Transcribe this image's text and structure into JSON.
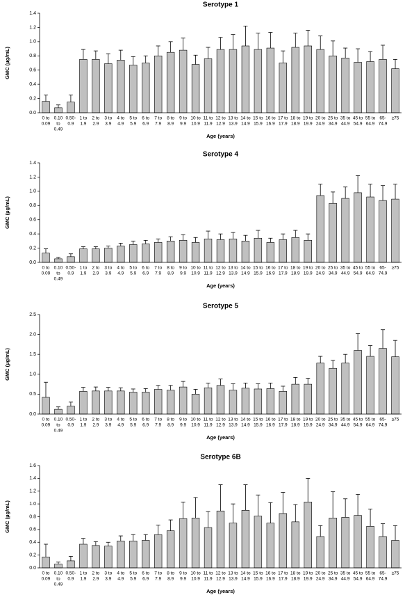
{
  "chart_data": [
    {
      "type": "bar",
      "title": "Serotype 1",
      "x_label": "Age (years)",
      "y_label": "GMC (µg/mL)",
      "color": "#c0c0c0",
      "categories": [
        [
          "0 to",
          "0.09"
        ],
        [
          "0.10",
          "to",
          "0.49"
        ],
        [
          "0.50-",
          "0.9"
        ],
        [
          "1 to",
          "1.9"
        ],
        [
          "2 to",
          "2.9"
        ],
        [
          "3 to",
          "3.9"
        ],
        [
          "4 to",
          "4.9"
        ],
        [
          "5 to",
          "5.9"
        ],
        [
          "6 to",
          "6.9"
        ],
        [
          "7 to",
          "7.9"
        ],
        [
          "8 to",
          "8.9"
        ],
        [
          "9 to",
          "9.9"
        ],
        [
          "10 to",
          "10.9"
        ],
        [
          "11 to",
          "11.9"
        ],
        [
          "12 to",
          "12.9"
        ],
        [
          "13 to",
          "13.9"
        ],
        [
          "14 to",
          "14.9"
        ],
        [
          "15 to",
          "15.9"
        ],
        [
          "16 to",
          "16.9"
        ],
        [
          "17 to",
          "17.9"
        ],
        [
          "18 to",
          "18.9"
        ],
        [
          "19 to",
          "19.9"
        ],
        [
          "20 to",
          "24.9"
        ],
        [
          "25 to",
          "34.9"
        ],
        [
          "35 to",
          "44.9"
        ],
        [
          "45 to",
          "54.9"
        ],
        [
          "55 to",
          "64.9"
        ],
        [
          "65-",
          "74.9"
        ],
        [
          "≥75"
        ]
      ],
      "values": [
        0.16,
        0.07,
        0.15,
        0.75,
        0.75,
        0.69,
        0.74,
        0.67,
        0.7,
        0.8,
        0.85,
        0.88,
        0.68,
        0.76,
        0.89,
        0.89,
        0.94,
        0.89,
        0.91,
        0.7,
        0.92,
        0.94,
        0.89,
        0.8,
        0.77,
        0.71,
        0.72,
        0.75,
        0.62
      ],
      "errors": [
        0.09,
        0.04,
        0.1,
        0.14,
        0.12,
        0.14,
        0.14,
        0.12,
        0.1,
        0.14,
        0.15,
        0.17,
        0.13,
        0.16,
        0.17,
        0.21,
        0.28,
        0.23,
        0.22,
        0.17,
        0.2,
        0.22,
        0.19,
        0.21,
        0.14,
        0.19,
        0.14,
        0.2,
        0.13
      ],
      "ylim": [
        0,
        1.4
      ],
      "yticks": [
        {
          "value": 0,
          "label": "0.0"
        },
        0.2,
        0.4,
        0.6,
        0.8,
        {
          "value": 1,
          "label": "1.0"
        },
        1.2,
        1.4
      ]
    },
    {
      "type": "bar",
      "title": "Serotype 4",
      "x_label": "Age (years)",
      "y_label": "GMC (µg/mL)",
      "color": "#c0c0c0",
      "categories": [
        [
          "0 to",
          "0.09"
        ],
        [
          "0.10",
          "to",
          "0.49"
        ],
        [
          "0.50-",
          "0.9"
        ],
        [
          "1 to",
          "1.9"
        ],
        [
          "2 to",
          "2.9"
        ],
        [
          "3 to",
          "3.9"
        ],
        [
          "4 to",
          "4.9"
        ],
        [
          "5 to",
          "5.9"
        ],
        [
          "6 to",
          "6.9"
        ],
        [
          "7 to",
          "7.9"
        ],
        [
          "8 to",
          "8.9"
        ],
        [
          "9 to",
          "9.9"
        ],
        [
          "10 to",
          "10.9"
        ],
        [
          "11 to",
          "11.9"
        ],
        [
          "12 to",
          "12.9"
        ],
        [
          "13 to",
          "13.9"
        ],
        [
          "14 to",
          "14.9"
        ],
        [
          "15 to",
          "15.9"
        ],
        [
          "16 to",
          "16.9"
        ],
        [
          "17 to",
          "17.9"
        ],
        [
          "18 to",
          "18.9"
        ],
        [
          "19 to",
          "19.9"
        ],
        [
          "20 to",
          "24.9"
        ],
        [
          "25 to",
          "34.9"
        ],
        [
          "35 to",
          "44.9"
        ],
        [
          "45 to",
          "54.9"
        ],
        [
          "55 to",
          "64.9"
        ],
        [
          "65-",
          "74.9"
        ],
        [
          "≥75"
        ]
      ],
      "values": [
        0.13,
        0.05,
        0.08,
        0.19,
        0.19,
        0.2,
        0.23,
        0.25,
        0.26,
        0.28,
        0.3,
        0.31,
        0.28,
        0.33,
        0.32,
        0.33,
        0.3,
        0.34,
        0.28,
        0.32,
        0.35,
        0.31,
        0.94,
        0.83,
        0.9,
        0.98,
        0.92,
        0.87,
        0.89
      ],
      "errors": [
        0.06,
        0.02,
        0.04,
        0.03,
        0.03,
        0.03,
        0.04,
        0.05,
        0.05,
        0.05,
        0.06,
        0.08,
        0.07,
        0.11,
        0.08,
        0.09,
        0.08,
        0.11,
        0.06,
        0.08,
        0.1,
        0.09,
        0.16,
        0.16,
        0.16,
        0.24,
        0.18,
        0.21,
        0.21
      ],
      "ylim": [
        0,
        1.4
      ],
      "yticks": [
        {
          "value": 0,
          "label": "0.0"
        },
        0.2,
        0.4,
        0.6,
        0.8,
        {
          "value": 1,
          "label": "1.0"
        },
        1.2,
        1.4
      ]
    },
    {
      "type": "bar",
      "title": "Serotype 5",
      "x_label": "Age (years)",
      "y_label": "GMC (µg/mL)",
      "color": "#c0c0c0",
      "categories": [
        [
          "0 to",
          "0.09"
        ],
        [
          "0.10",
          "to",
          "0.49"
        ],
        [
          "0.50-",
          "0.9"
        ],
        [
          "1 to",
          "1.9"
        ],
        [
          "2 to",
          "2.9"
        ],
        [
          "3 to",
          "3.9"
        ],
        [
          "4 to",
          "4.9"
        ],
        [
          "5 to",
          "5.9"
        ],
        [
          "6 to",
          "6.9"
        ],
        [
          "7 to",
          "7.9"
        ],
        [
          "8 to",
          "8.9"
        ],
        [
          "9 to",
          "9.9"
        ],
        [
          "10 to",
          "10.9"
        ],
        [
          "11 to",
          "11.9"
        ],
        [
          "12 to",
          "12.9"
        ],
        [
          "13 to",
          "13.9"
        ],
        [
          "14 to",
          "14.9"
        ],
        [
          "15 to",
          "15.9"
        ],
        [
          "16 to",
          "16.9"
        ],
        [
          "17 to",
          "17.9"
        ],
        [
          "18 to",
          "18.9"
        ],
        [
          "19 to",
          "19.9"
        ],
        [
          "20 to",
          "24.9"
        ],
        [
          "25 to",
          "34.9"
        ],
        [
          "35 to",
          "44.9"
        ],
        [
          "45 to",
          "54.9"
        ],
        [
          "55 to",
          "64.9"
        ],
        [
          "65-",
          "74.9"
        ],
        [
          "≥75"
        ]
      ],
      "values": [
        0.42,
        0.12,
        0.2,
        0.57,
        0.58,
        0.58,
        0.58,
        0.55,
        0.55,
        0.62,
        0.6,
        0.68,
        0.5,
        0.66,
        0.72,
        0.6,
        0.65,
        0.63,
        0.64,
        0.57,
        0.75,
        0.75,
        1.28,
        1.15,
        1.28,
        1.6,
        1.45,
        1.65,
        1.44
      ],
      "errors": [
        0.38,
        0.06,
        0.1,
        0.1,
        0.1,
        0.09,
        0.08,
        0.08,
        0.09,
        0.1,
        0.12,
        0.14,
        0.12,
        0.12,
        0.16,
        0.16,
        0.13,
        0.13,
        0.14,
        0.13,
        0.17,
        0.15,
        0.17,
        0.2,
        0.22,
        0.42,
        0.27,
        0.47,
        0.41
      ],
      "ylim": [
        0,
        2.5
      ],
      "yticks": [
        {
          "value": 0,
          "label": "0.0"
        },
        0.5,
        {
          "value": 1,
          "label": "1.0"
        },
        1.5,
        {
          "value": 2,
          "label": "2.0"
        },
        2.5
      ]
    },
    {
      "type": "bar",
      "title": "Serotype 6B",
      "x_label": "Age (years)",
      "y_label": "GMC (µg/mL)",
      "color": "#c0c0c0",
      "categories": [
        [
          "0 to",
          "0.09"
        ],
        [
          "0.10",
          "to",
          "0.49"
        ],
        [
          "0.50-",
          "0.9"
        ],
        [
          "1 to",
          "1.9"
        ],
        [
          "2 to",
          "2.9"
        ],
        [
          "3 to",
          "3.9"
        ],
        [
          "4 to",
          "4.9"
        ],
        [
          "5 to",
          "5.9"
        ],
        [
          "6 to",
          "6.9"
        ],
        [
          "7 to",
          "7.9"
        ],
        [
          "8 to",
          "8.9"
        ],
        [
          "9 to",
          "9.9"
        ],
        [
          "10 to",
          "10.9"
        ],
        [
          "11 to",
          "11.9"
        ],
        [
          "12 to",
          "12.9"
        ],
        [
          "13 to",
          "13.9"
        ],
        [
          "14 to",
          "14.9"
        ],
        [
          "15 to",
          "15.9"
        ],
        [
          "16 to",
          "16.9"
        ],
        [
          "17 to",
          "17.9"
        ],
        [
          "18 to",
          "18.9"
        ],
        [
          "19 to",
          "19.9"
        ],
        [
          "20 to",
          "24.9"
        ],
        [
          "25 to",
          "34.9"
        ],
        [
          "35 to",
          "44.9"
        ],
        [
          "45 to",
          "54.9"
        ],
        [
          "55 to",
          "64.9"
        ],
        [
          "65-",
          "74.9"
        ],
        [
          "≥75"
        ]
      ],
      "values": [
        0.17,
        0.06,
        0.11,
        0.37,
        0.35,
        0.34,
        0.42,
        0.42,
        0.43,
        0.52,
        0.58,
        0.77,
        0.78,
        0.63,
        0.89,
        0.7,
        0.9,
        0.81,
        0.7,
        0.85,
        0.72,
        1.03,
        0.49,
        0.78,
        0.79,
        0.82,
        0.65,
        0.49,
        0.43
      ],
      "errors": [
        0.2,
        0.03,
        0.07,
        0.09,
        0.06,
        0.06,
        0.08,
        0.1,
        0.09,
        0.15,
        0.17,
        0.26,
        0.32,
        0.25,
        0.41,
        0.3,
        0.4,
        0.33,
        0.32,
        0.33,
        0.27,
        0.37,
        0.17,
        0.41,
        0.29,
        0.33,
        0.27,
        0.2,
        0.23
      ],
      "ylim": [
        0,
        1.6
      ],
      "yticks": [
        {
          "value": 0,
          "label": "0.0"
        },
        0.2,
        0.4,
        0.6,
        0.8,
        {
          "value": 1,
          "label": "1.0"
        },
        1.2,
        1.4,
        1.6
      ]
    }
  ]
}
